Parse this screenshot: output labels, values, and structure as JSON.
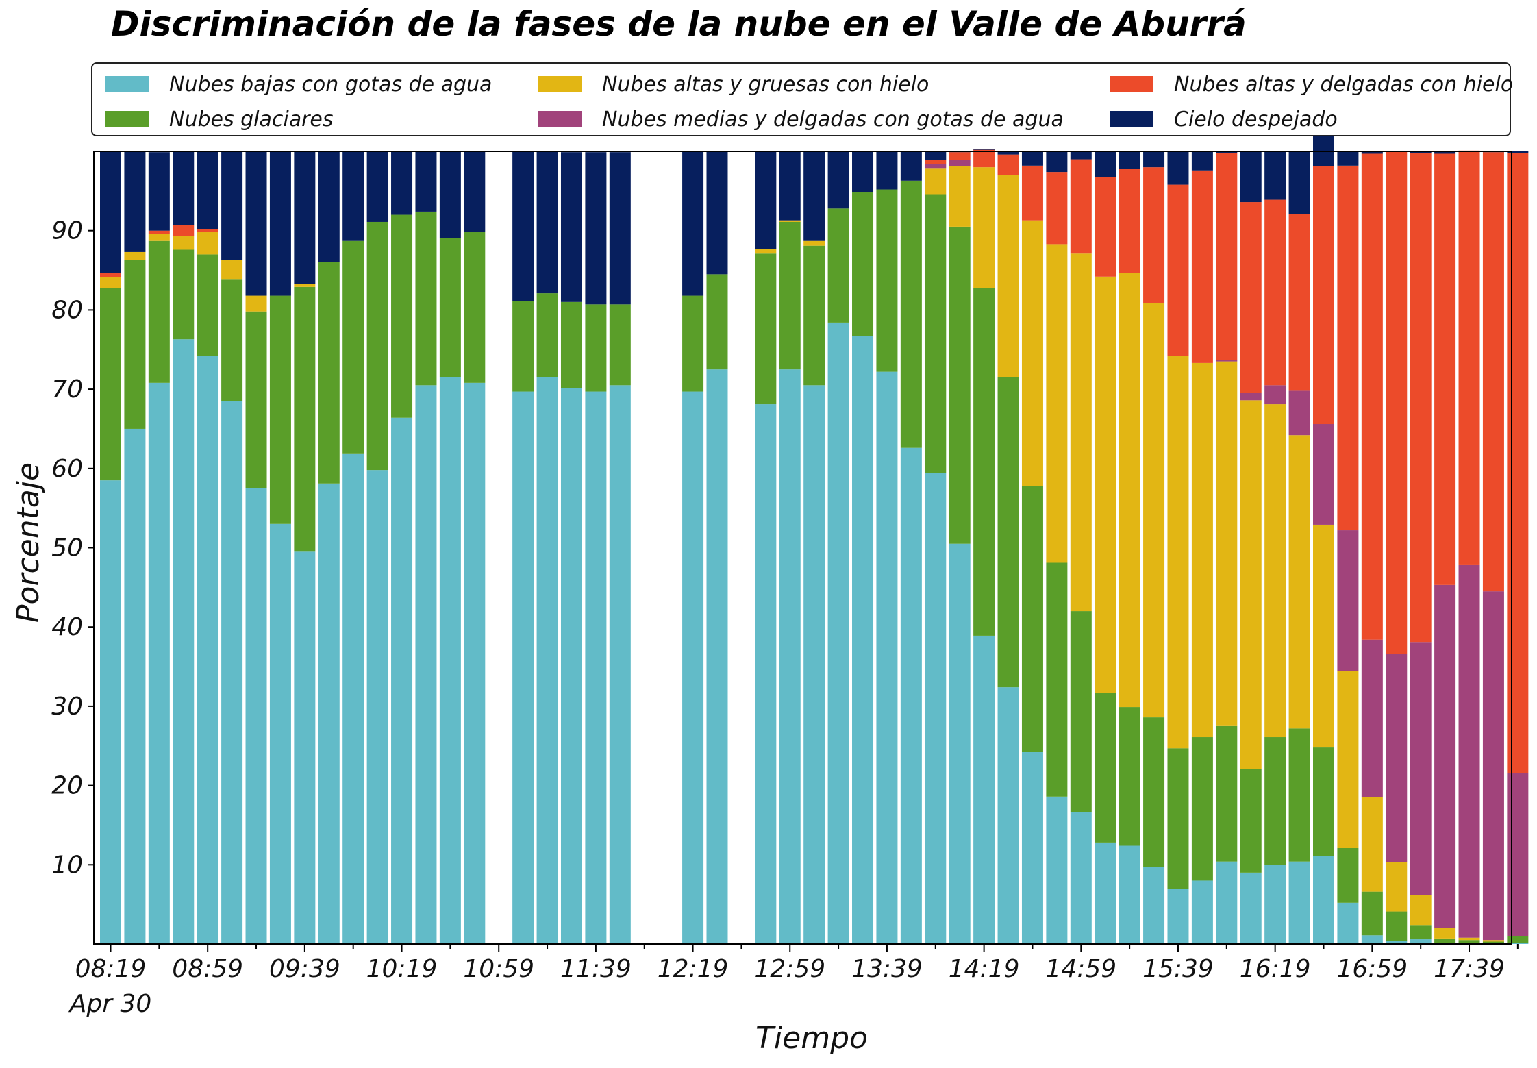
{
  "chart_data": {
    "type": "bar",
    "stacked": true,
    "title": "Discriminación de la fases de la nube en el Valle de Aburrá",
    "xlabel": "Tiempo",
    "ylabel": "Porcentaje",
    "ylim": [
      0,
      100
    ],
    "yticks": [
      10,
      20,
      30,
      40,
      50,
      60,
      70,
      80,
      90
    ],
    "xticks": [
      "08:19",
      "08:59",
      "09:39",
      "10:19",
      "10:59",
      "11:39",
      "12:19",
      "12:59",
      "13:39",
      "14:19",
      "14:59",
      "15:39",
      "16:19",
      "16:59",
      "17:39"
    ],
    "xtick_date": "Apr 30",
    "x": [
      "08:19",
      "08:29",
      "08:39",
      "08:49",
      "08:59",
      "09:09",
      "09:19",
      "09:29",
      "09:39",
      "09:49",
      "09:59",
      "10:09",
      "10:19",
      "10:29",
      "10:39",
      "10:49",
      "10:59",
      "11:09",
      "11:19",
      "11:29",
      "11:39",
      "11:49",
      "11:59",
      "12:09",
      "12:19",
      "12:29",
      "12:39",
      "12:49",
      "12:59",
      "13:09",
      "13:19",
      "13:29",
      "13:39",
      "13:49",
      "13:59",
      "14:09",
      "14:19",
      "14:29",
      "14:39",
      "14:49",
      "14:59",
      "15:09",
      "15:19",
      "15:29",
      "15:39",
      "15:49",
      "15:59",
      "16:09",
      "16:19",
      "16:29",
      "16:39",
      "16:49",
      "16:59",
      "17:09",
      "17:19",
      "17:29",
      "17:39",
      "17:49",
      "17:59"
    ],
    "legend": {
      "position": "top",
      "columns": 3
    },
    "series": [
      {
        "name": "Nubes bajas con gotas de agua",
        "color": "#62BBC8",
        "values": [
          58.5,
          65,
          70.8,
          76.3,
          74.2,
          68.5,
          57.5,
          53,
          49.5,
          58.1,
          61.9,
          59.8,
          66.4,
          70.5,
          71.5,
          70.8,
          null,
          69.7,
          71.5,
          70.1,
          69.7,
          70.5,
          null,
          null,
          69.7,
          72.5,
          null,
          68.1,
          72.5,
          70.5,
          78.4,
          76.7,
          72.2,
          62.6,
          59.4,
          50.5,
          38.9,
          32.4,
          24.2,
          18.6,
          16.6,
          12.8,
          12.4,
          9.7,
          7,
          8,
          10.4,
          9,
          10,
          10.4,
          11.1,
          5.2,
          1.1,
          0.4,
          0.6,
          0.1,
          0.1,
          0.1,
          0.1
        ]
      },
      {
        "name": "Nubes glaciares",
        "color": "#5A9E29",
        "values": [
          24.3,
          21.3,
          17.9,
          11.3,
          12.8,
          15.4,
          22.3,
          28.8,
          33.4,
          27.9,
          26.8,
          31.3,
          25.6,
          21.9,
          17.6,
          19,
          null,
          11.4,
          10.6,
          10.9,
          11,
          10.2,
          null,
          null,
          12.1,
          12,
          null,
          19,
          18.6,
          17.6,
          14.4,
          18.2,
          23,
          33.7,
          35.2,
          40,
          43.9,
          39.1,
          33.6,
          29.5,
          25.4,
          18.9,
          17.5,
          18.9,
          17.7,
          18.1,
          17.1,
          13.1,
          16.1,
          16.8,
          13.7,
          6.9,
          5.5,
          3.7,
          1.8,
          0.6,
          0.4,
          0.2,
          0.9
        ]
      },
      {
        "name": "Nubes altas y gruesas con hielo",
        "color": "#E2B614",
        "values": [
          1.3,
          1,
          0.9,
          1.7,
          2.8,
          2.4,
          2,
          0,
          0.4,
          0,
          0,
          0,
          0,
          0,
          0,
          0,
          null,
          0,
          0,
          0,
          0,
          0,
          null,
          null,
          0,
          0,
          null,
          0.6,
          0.2,
          0.6,
          0,
          0,
          0,
          0,
          3.3,
          7.6,
          15.2,
          25.5,
          33.5,
          40.2,
          45.1,
          52.5,
          54.8,
          52.3,
          49.5,
          47.2,
          46,
          46.5,
          42,
          37,
          28.1,
          22.3,
          11.9,
          6.2,
          3.8,
          1.3,
          0.3,
          0.2,
          0
        ]
      },
      {
        "name": "Nubes medias y delgadas con gotas de agua",
        "color": "#A1437B",
        "values": [
          0,
          0,
          0,
          0,
          0,
          0,
          0,
          0,
          0,
          0,
          0,
          0,
          0,
          0,
          0,
          0,
          null,
          0,
          0,
          0,
          0,
          0,
          null,
          null,
          0,
          0,
          null,
          0,
          0,
          0,
          0,
          0,
          0,
          0,
          0.5,
          0.8,
          0,
          0,
          0,
          0,
          0,
          0,
          0,
          0,
          0,
          0,
          0.2,
          0.9,
          2.4,
          5.6,
          12.7,
          17.8,
          19.9,
          26.3,
          31.9,
          43.3,
          47,
          44,
          20.6
        ]
      },
      {
        "name": "Nubes altas y delgadas con hielo",
        "color": "#EC4B2A",
        "values": [
          0.6,
          0,
          0.4,
          1.4,
          0.4,
          0,
          0,
          0,
          0,
          0,
          0,
          0,
          0,
          0,
          0,
          0,
          null,
          0,
          0,
          0,
          0,
          0,
          null,
          null,
          0,
          0,
          null,
          0,
          0,
          0,
          0,
          0,
          0,
          0,
          0.5,
          1,
          2.2,
          2.6,
          6.9,
          9.1,
          11.9,
          12.6,
          13.1,
          17.1,
          21.6,
          24.3,
          26.1,
          24.1,
          23.4,
          22.3,
          32.5,
          46,
          61.3,
          63.4,
          61.7,
          54.4,
          52.3,
          55.4,
          78.2
        ]
      },
      {
        "name": "Cielo despejado",
        "color": "#071F5E",
        "values": [
          15.3,
          12.7,
          9.9,
          9.3,
          9.8,
          13.7,
          18.2,
          18.2,
          16.7,
          14,
          11.3,
          8.9,
          8,
          7.6,
          10.9,
          10.2,
          null,
          18.9,
          17.9,
          18.9,
          19.2,
          19.2,
          null,
          null,
          18.2,
          15.5,
          null,
          12.3,
          8.7,
          11.3,
          7.2,
          5.1,
          4.8,
          3.7,
          1.1,
          0.1,
          0.1,
          0.4,
          1.8,
          2.6,
          1,
          3.2,
          2.2,
          2,
          4.2,
          2.4,
          0.2,
          6.4,
          6.1,
          7.9,
          3.9,
          1.8,
          0.3,
          0,
          0.2,
          0.3,
          0,
          0.1,
          0.2
        ]
      }
    ]
  }
}
